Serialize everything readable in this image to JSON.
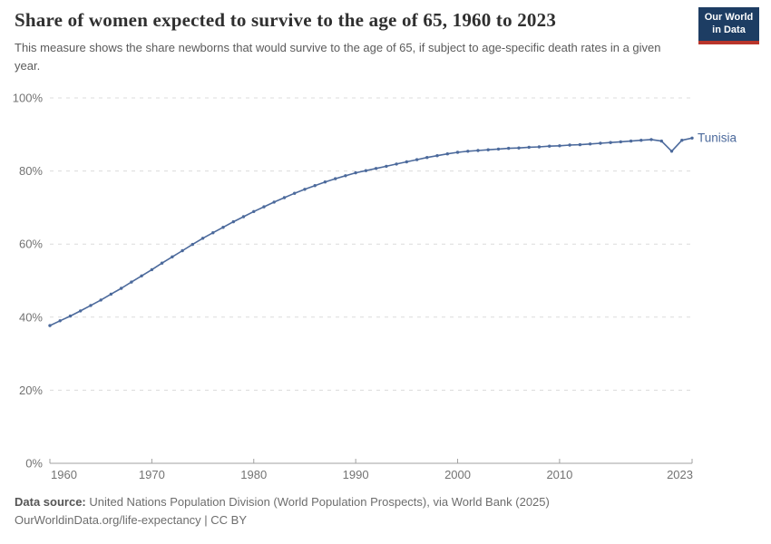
{
  "header": {
    "logo": {
      "line1": "Our World",
      "line2": "in Data",
      "bg_color": "#1d3d63",
      "bar_color": "#b9352b"
    }
  },
  "chart_data": {
    "type": "line",
    "title": "Share of women expected to survive to the age of 65, 1960 to 2023",
    "subtitle": "This measure shows the share newborns that would survive to the age of 65, if subject to age-specific death rates in a given year.",
    "xlabel": "",
    "ylabel": "",
    "xlim": [
      1960,
      2023
    ],
    "ylim": [
      0,
      100
    ],
    "grid": "horizontal-dashed",
    "legend": "end-of-line-label",
    "x_ticks": [
      {
        "value": 1960,
        "label": "1960",
        "anchor": "start"
      },
      {
        "value": 1970,
        "label": "1970",
        "anchor": "middle"
      },
      {
        "value": 1980,
        "label": "1980",
        "anchor": "middle"
      },
      {
        "value": 1990,
        "label": "1990",
        "anchor": "middle"
      },
      {
        "value": 2000,
        "label": "2000",
        "anchor": "middle"
      },
      {
        "value": 2010,
        "label": "2010",
        "anchor": "middle"
      },
      {
        "value": 2023,
        "label": "2023",
        "anchor": "end"
      }
    ],
    "y_ticks": [
      {
        "value": 0,
        "label": "0%"
      },
      {
        "value": 20,
        "label": "20%"
      },
      {
        "value": 40,
        "label": "40%"
      },
      {
        "value": 60,
        "label": "60%"
      },
      {
        "value": 80,
        "label": "80%"
      },
      {
        "value": 100,
        "label": "100%"
      }
    ],
    "series": [
      {
        "name": "Tunisia",
        "color": "#4c6a9c",
        "start_year": 1960,
        "values": [
          37.7,
          39.0,
          40.3,
          41.7,
          43.2,
          44.7,
          46.3,
          47.9,
          49.6,
          51.3,
          53.0,
          54.8,
          56.5,
          58.2,
          59.9,
          61.6,
          63.1,
          64.6,
          66.1,
          67.5,
          68.9,
          70.2,
          71.5,
          72.7,
          73.9,
          75.0,
          76.0,
          77.0,
          77.9,
          78.7,
          79.5,
          80.1,
          80.7,
          81.3,
          81.9,
          82.5,
          83.1,
          83.7,
          84.2,
          84.7,
          85.1,
          85.4,
          85.6,
          85.8,
          86.0,
          86.2,
          86.3,
          86.5,
          86.6,
          86.8,
          86.9,
          87.1,
          87.2,
          87.4,
          87.6,
          87.8,
          88.0,
          88.2,
          88.4,
          88.6,
          88.2,
          85.4,
          88.4,
          89.0
        ]
      }
    ]
  },
  "footer": {
    "source_label": "Data source:",
    "source_text": " United Nations Population Division (World Population Prospects), via World Bank (2025)",
    "note_text": "OurWorldinData.org/life-expectancy | CC BY"
  }
}
